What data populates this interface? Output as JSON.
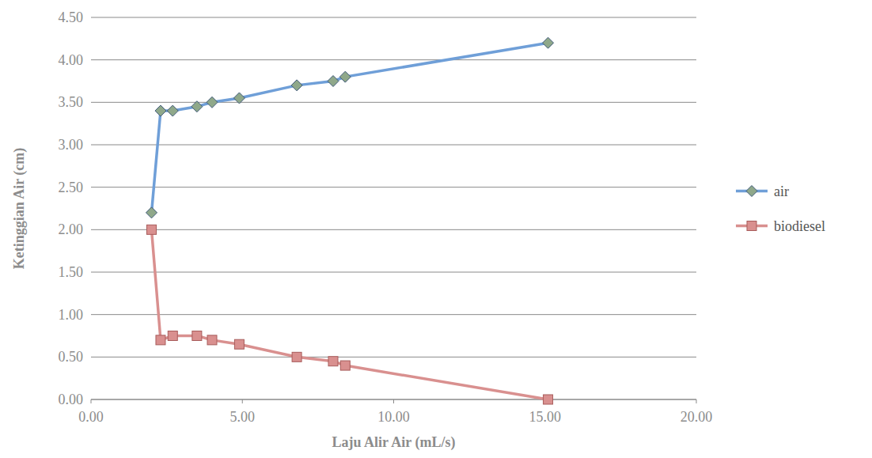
{
  "chart_data": {
    "type": "line",
    "x_label": "Laju Alir Air (mL/s)",
    "y_label": "Ketinggian Air (cm)",
    "xlim": [
      0,
      20
    ],
    "xticks": [
      {
        "value": 0,
        "label": "0.00"
      },
      {
        "value": 5,
        "label": "5.00"
      },
      {
        "value": 10,
        "label": "10.00"
      },
      {
        "value": 15,
        "label": "15.00"
      },
      {
        "value": 20,
        "label": "20.00"
      }
    ],
    "ylim": [
      0,
      4.5
    ],
    "yticks": [
      {
        "value": 0,
        "label": "0.00"
      },
      {
        "value": 0.5,
        "label": "0.50"
      },
      {
        "value": 1,
        "label": "1.00"
      },
      {
        "value": 1.5,
        "label": "1.50"
      },
      {
        "value": 2,
        "label": "2.00"
      },
      {
        "value": 2.5,
        "label": "2.50"
      },
      {
        "value": 3,
        "label": "3.00"
      },
      {
        "value": 3.5,
        "label": "3.50"
      },
      {
        "value": 4,
        "label": "4.00"
      },
      {
        "value": 4.5,
        "label": "4.50"
      }
    ],
    "grid": true,
    "legend": "right",
    "series": [
      {
        "name": "air",
        "color": "#6f9fd8",
        "marker": "diamond",
        "x": [
          2.0,
          2.3,
          2.7,
          3.5,
          4.0,
          4.9,
          6.8,
          8.0,
          8.4,
          15.1
        ],
        "values": [
          2.2,
          3.4,
          3.4,
          3.45,
          3.5,
          3.55,
          3.7,
          3.75,
          3.8,
          4.2
        ]
      },
      {
        "name": "biodiesel",
        "color": "#d9908f",
        "marker": "square",
        "x": [
          2.0,
          2.3,
          2.7,
          3.5,
          4.0,
          4.9,
          6.8,
          8.0,
          8.4,
          15.1
        ],
        "values": [
          2.0,
          0.7,
          0.75,
          0.75,
          0.7,
          0.65,
          0.5,
          0.45,
          0.4,
          0.0
        ]
      }
    ]
  }
}
